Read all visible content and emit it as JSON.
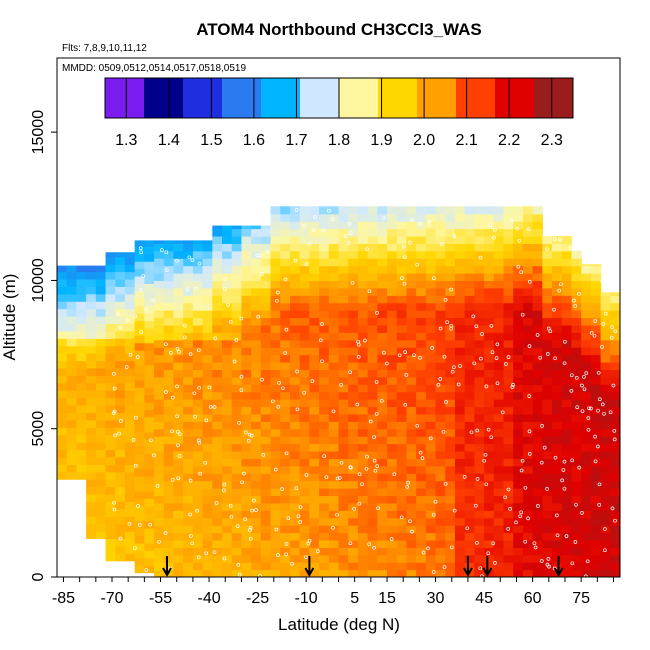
{
  "chart_data": {
    "type": "heatmap",
    "title": "ATOM4 Northbound CH3CCl3_WAS",
    "subtitle_flights": "Flts: 7,8,9,10,11,12",
    "subtitle_dates": "MMDD: 0509,0512,0514,0517,0518,0519",
    "xlabel": "Latitude (deg N)",
    "ylabel": "Altitude (m)",
    "x_ticks": [
      -85,
      -70,
      -55,
      -40,
      -25,
      -10,
      5,
      15,
      30,
      45,
      60,
      75
    ],
    "y_ticks": [
      0,
      5000,
      10000,
      15000
    ],
    "xlim": [
      -87,
      87
    ],
    "ylim": [
      0,
      17500
    ],
    "colorbar": {
      "ticks": [
        1.3,
        1.4,
        1.5,
        1.6,
        1.7,
        1.8,
        1.9,
        2.0,
        2.1,
        2.2,
        2.3
      ],
      "range": [
        1.25,
        2.35
      ],
      "colors": [
        "#7a1cf0",
        "#00008b",
        "#1f2fe0",
        "#2a7af0",
        "#00b5ff",
        "#cfe8ff",
        "#fff7a0",
        "#ffd700",
        "#ffa000",
        "#ff4000",
        "#e00000",
        "#9b1c1c"
      ]
    },
    "flight_arrow_latitudes": [
      -53,
      -9,
      40,
      46,
      68
    ],
    "upper_boundary_km_by_latitude": [
      {
        "lat": -87,
        "top": 10500
      },
      {
        "lat": -80,
        "top": 10500
      },
      {
        "lat": -72,
        "top": 10950
      },
      {
        "lat": -63,
        "top": 11350
      },
      {
        "lat": -38,
        "top": 11850
      },
      {
        "lat": -20,
        "top": 12500
      },
      {
        "lat": 55,
        "top": 12500
      },
      {
        "lat": 62,
        "top": 11500
      },
      {
        "lat": 72,
        "top": 11000
      },
      {
        "lat": 76,
        "top": 10550
      },
      {
        "lat": 82,
        "top": 9600
      },
      {
        "lat": 87,
        "top": 9600
      }
    ]
  }
}
